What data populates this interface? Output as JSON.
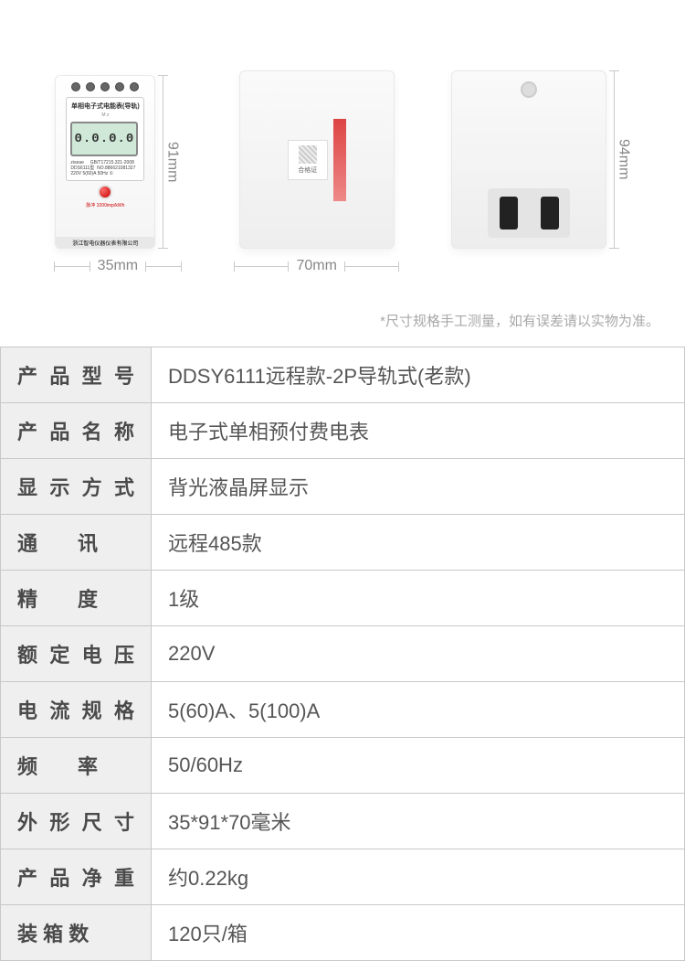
{
  "dimensions": {
    "front_width": "35mm",
    "front_height": "91mm",
    "side_width": "70mm",
    "back_height": "94mm"
  },
  "device_face": {
    "title": "单相电子式电能表(导轨)",
    "lcd": "0.0.0.0",
    "lcd_tags": "M    z",
    "spec_lines": "ziseae     GB/T17215.321-2008\nDDS6111型  NO.886621081327\n220V 5(60)A 50Hz ①",
    "pulse": "脉冲  3200imp/kWh",
    "brand": "浙江智电仪器仪表有限公司"
  },
  "sticker_text": "合格证",
  "note": "*尺寸规格手工测量，如有误差请以实物为准。",
  "spec_rows": [
    {
      "k": "产品型号",
      "spread": true,
      "v": "DDSY6111远程款-2P导轨式(老款)"
    },
    {
      "k": "产品名称",
      "spread": true,
      "v": "电子式单相预付费电表"
    },
    {
      "k": "显示方式",
      "spread": true,
      "v": "背光液晶屏显示"
    },
    {
      "k": "通　　讯",
      "spread": false,
      "v": "远程485款"
    },
    {
      "k": "精　　度",
      "spread": false,
      "v": "1级"
    },
    {
      "k": "额定电压",
      "spread": true,
      "v": "220V"
    },
    {
      "k": "电流规格",
      "spread": true,
      "v": "5(60)A、5(100)A"
    },
    {
      "k": "频　　率",
      "spread": false,
      "v": "50/60Hz"
    },
    {
      "k": "外形尺寸",
      "spread": true,
      "v": "35*91*70毫米"
    },
    {
      "k": "产品净重",
      "spread": true,
      "v": "约0.22kg"
    },
    {
      "k": "装 箱 数",
      "spread": false,
      "v": "120只/箱"
    }
  ],
  "colors": {
    "border": "#c8c8c8",
    "header_bg": "#efefef",
    "text": "#555555",
    "note": "#a8a8a8"
  }
}
